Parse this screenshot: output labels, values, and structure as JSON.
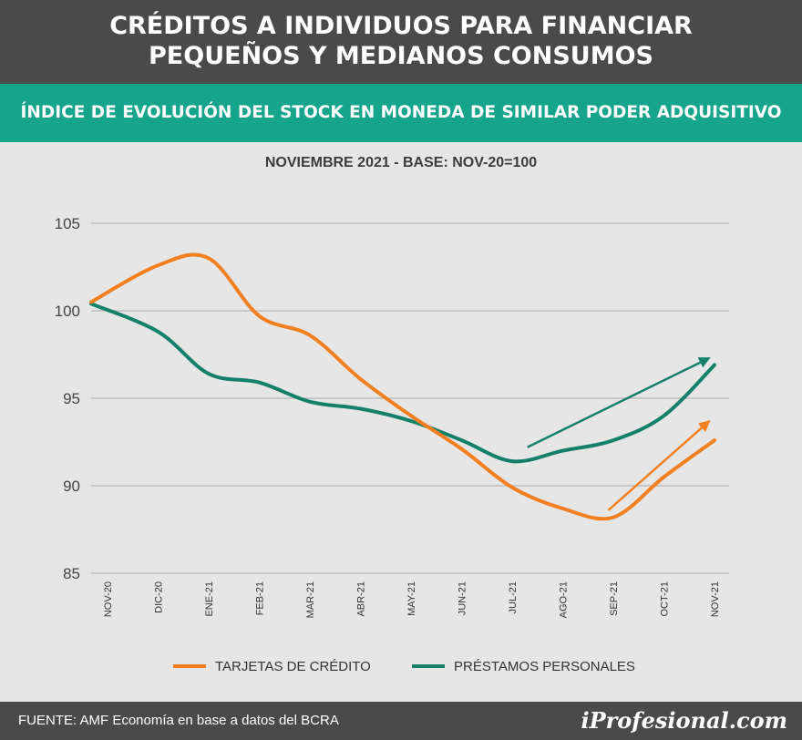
{
  "header": {
    "title_line1": "CRÉDITOS A INDIVIDUOS PARA FINANCIAR",
    "title_line2": "PEQUEÑOS Y MEDIANOS CONSUMOS",
    "subtitle": "ÍNDICE DE EVOLUCIÓN DEL STOCK EN MONEDA DE SIMILAR PODER ADQUISITIVO"
  },
  "footer": {
    "source": "FUENTE: AMF Economía en base a datos del BCRA",
    "brand": "iProfesional.com"
  },
  "colors": {
    "tarjetas": "#f28021",
    "prestamos": "#14806a",
    "grid": "#b5b5b5"
  },
  "chart_data": {
    "type": "line",
    "title": "NOVIEMBRE 2021 - BASE: NOV-20=100",
    "xlabel": "",
    "ylabel": "",
    "categories": [
      "NOV-20",
      "DIC-20",
      "ENE-21",
      "FEB-21",
      "MAR-21",
      "ABR-21",
      "MAY-21",
      "JUN-21",
      "JUL-21",
      "AGO-21",
      "SEP-21",
      "OCT-21",
      "NOV-21"
    ],
    "ylim": [
      85,
      105
    ],
    "yticks": [
      85,
      90,
      95,
      100,
      105
    ],
    "grid": true,
    "legend_position": "bottom",
    "series": [
      {
        "name": "TARJETAS DE CRÉDITO",
        "key": "tarjetas",
        "values": [
          100.5,
          102.6,
          103.0,
          99.7,
          98.6,
          96.1,
          94.0,
          92.1,
          89.9,
          88.7,
          88.2,
          90.5,
          92.6
        ]
      },
      {
        "name": "PRÉSTAMOS PERSONALES",
        "key": "prestamos",
        "values": [
          100.4,
          98.8,
          96.4,
          95.9,
          94.8,
          94.4,
          93.7,
          92.6,
          91.4,
          92.0,
          92.6,
          94.0,
          96.9
        ]
      }
    ],
    "annotations": [
      {
        "type": "trend-arrow",
        "series": "tarjetas",
        "from": {
          "x_index": 9.9,
          "y": 88.6
        },
        "to": {
          "x_index": 11.9,
          "y": 93.7
        }
      },
      {
        "type": "trend-arrow",
        "series": "prestamos",
        "from": {
          "x_index": 8.3,
          "y": 92.2
        },
        "to": {
          "x_index": 11.9,
          "y": 97.3
        }
      }
    ]
  }
}
